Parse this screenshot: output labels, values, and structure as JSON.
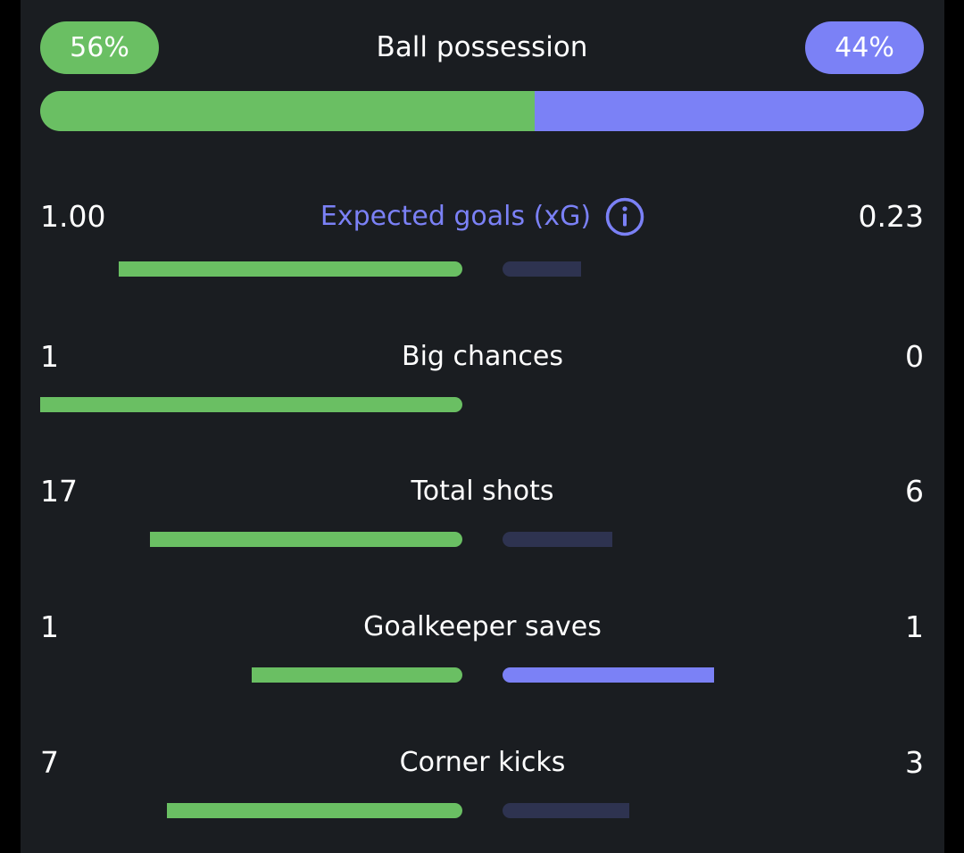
{
  "colors": {
    "home": "#6abf63",
    "away": "#7b81f6",
    "away_muted": "#2e3350",
    "background": "#1a1d21",
    "highlight_text": "#7b81f6"
  },
  "possession": {
    "title": "Ball possession",
    "home_label": "56%",
    "away_label": "44%",
    "home_fraction": 0.56,
    "away_fraction": 0.44
  },
  "stats": [
    {
      "label": "Expected goals (xG)",
      "home": "1.00",
      "away": "0.23",
      "highlighted": true,
      "icon": "info-icon",
      "home_fraction": 0.815,
      "away_fraction": 0.185,
      "away_winning": false
    },
    {
      "label": "Big chances",
      "home": "1",
      "away": "0",
      "highlighted": false,
      "home_fraction": 1.0,
      "away_fraction": 0.0,
      "away_winning": false
    },
    {
      "label": "Total shots",
      "home": "17",
      "away": "6",
      "highlighted": false,
      "home_fraction": 0.74,
      "away_fraction": 0.26,
      "away_winning": false
    },
    {
      "label": "Goalkeeper saves",
      "home": "1",
      "away": "1",
      "highlighted": false,
      "home_fraction": 0.5,
      "away_fraction": 0.5,
      "away_winning": true
    },
    {
      "label": "Corner kicks",
      "home": "7",
      "away": "3",
      "highlighted": false,
      "home_fraction": 0.7,
      "away_fraction": 0.3,
      "away_winning": false
    }
  ]
}
